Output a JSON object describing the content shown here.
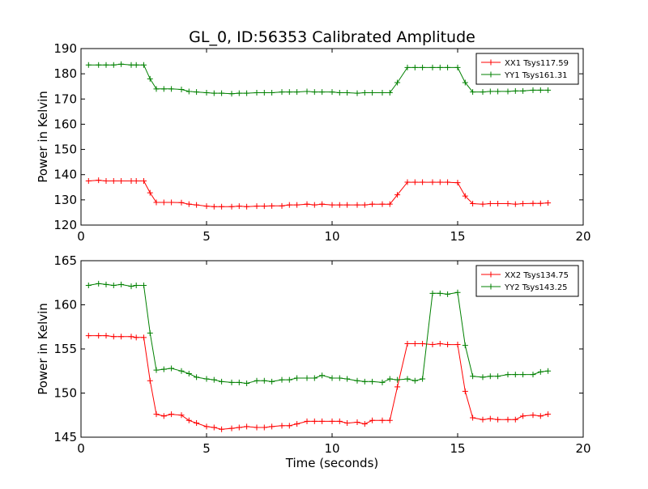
{
  "chart_data": [
    {
      "type": "line",
      "title": "GL_0, ID:56353 Calibrated Amplitude",
      "xlabel": "",
      "ylabel": "Power in Kelvin",
      "xlim": [
        0,
        20
      ],
      "ylim": [
        120,
        190
      ],
      "xticks": [
        0,
        5,
        10,
        15,
        20
      ],
      "yticks": [
        120,
        130,
        140,
        150,
        160,
        170,
        180,
        190
      ],
      "legend_position": "top-right",
      "x": [
        0.3,
        0.7,
        1.0,
        1.3,
        1.6,
        2.0,
        2.2,
        2.5,
        2.75,
        3.0,
        3.3,
        3.6,
        4.0,
        4.3,
        4.6,
        5.0,
        5.3,
        5.6,
        6.0,
        6.3,
        6.6,
        7.0,
        7.3,
        7.6,
        8.0,
        8.3,
        8.6,
        9.0,
        9.3,
        9.6,
        10.0,
        10.3,
        10.6,
        11.0,
        11.3,
        11.6,
        12.0,
        12.3,
        12.6,
        13.0,
        13.3,
        13.6,
        14.0,
        14.3,
        14.6,
        15.0,
        15.3,
        15.6,
        16.0,
        16.3,
        16.6,
        17.0,
        17.3,
        17.6,
        18.0,
        18.3,
        18.6
      ],
      "series": [
        {
          "name": "XX1 Tsys117.59",
          "color": "#ff0000",
          "values": [
            137.5,
            137.8,
            137.5,
            137.5,
            137.5,
            137.5,
            137.5,
            137.5,
            132.8,
            129.0,
            129.0,
            129.0,
            128.9,
            128.3,
            128.0,
            127.5,
            127.3,
            127.3,
            127.3,
            127.5,
            127.3,
            127.5,
            127.5,
            127.6,
            127.6,
            128.0,
            128.0,
            128.3,
            128.0,
            128.3,
            128.0,
            128.0,
            128.0,
            128.0,
            128.0,
            128.3,
            128.3,
            128.3,
            132.0,
            137.0,
            137.0,
            137.0,
            137.0,
            137.0,
            137.0,
            136.8,
            131.5,
            128.5,
            128.3,
            128.5,
            128.5,
            128.5,
            128.3,
            128.5,
            128.6,
            128.6,
            128.8
          ]
        },
        {
          "name": "YY1 Tsys161.31",
          "color": "#008000",
          "values": [
            183.5,
            183.5,
            183.5,
            183.5,
            183.8,
            183.5,
            183.5,
            183.5,
            178.0,
            174.0,
            174.0,
            174.0,
            173.8,
            173.0,
            172.8,
            172.5,
            172.3,
            172.3,
            172.1,
            172.3,
            172.3,
            172.5,
            172.5,
            172.5,
            172.8,
            172.8,
            172.8,
            173.0,
            172.8,
            172.8,
            172.8,
            172.5,
            172.5,
            172.3,
            172.5,
            172.5,
            172.5,
            172.5,
            176.5,
            182.5,
            182.5,
            182.5,
            182.5,
            182.5,
            182.5,
            182.5,
            176.5,
            172.8,
            172.8,
            173.0,
            173.0,
            173.0,
            173.2,
            173.2,
            173.5,
            173.5,
            173.5
          ]
        }
      ]
    },
    {
      "type": "line",
      "title": "",
      "xlabel": "Time (seconds)",
      "ylabel": "Power in Kelvin",
      "xlim": [
        0,
        20
      ],
      "ylim": [
        145,
        165
      ],
      "xticks": [
        0,
        5,
        10,
        15,
        20
      ],
      "yticks": [
        145,
        150,
        155,
        160,
        165
      ],
      "legend_position": "top-right",
      "x": [
        0.3,
        0.7,
        1.0,
        1.3,
        1.6,
        2.0,
        2.2,
        2.5,
        2.75,
        3.0,
        3.3,
        3.6,
        4.0,
        4.3,
        4.6,
        5.0,
        5.3,
        5.6,
        6.0,
        6.3,
        6.6,
        7.0,
        7.3,
        7.6,
        8.0,
        8.3,
        8.6,
        9.0,
        9.3,
        9.6,
        10.0,
        10.3,
        10.6,
        11.0,
        11.3,
        11.6,
        12.0,
        12.3,
        12.6,
        13.0,
        13.3,
        13.6,
        14.0,
        14.3,
        14.6,
        15.0,
        15.3,
        15.6,
        16.0,
        16.3,
        16.6,
        17.0,
        17.3,
        17.6,
        18.0,
        18.3,
        18.6
      ],
      "series": [
        {
          "name": "XX2 Tsys134.75",
          "color": "#ff0000",
          "values": [
            156.5,
            156.5,
            156.5,
            156.4,
            156.4,
            156.4,
            156.3,
            156.3,
            151.4,
            147.6,
            147.4,
            147.6,
            147.5,
            146.9,
            146.6,
            146.2,
            146.1,
            145.9,
            146.0,
            146.1,
            146.2,
            146.1,
            146.1,
            146.2,
            146.3,
            146.3,
            146.5,
            146.8,
            146.8,
            146.8,
            146.8,
            146.8,
            146.6,
            146.7,
            146.5,
            146.9,
            146.9,
            146.9,
            150.7,
            155.6,
            155.6,
            155.6,
            155.5,
            155.6,
            155.5,
            155.5,
            150.2,
            147.2,
            147.0,
            147.1,
            147.0,
            147.0,
            147.0,
            147.4,
            147.5,
            147.4,
            147.6
          ]
        },
        {
          "name": "YY2 Tsys143.25",
          "color": "#008000",
          "values": [
            162.2,
            162.4,
            162.3,
            162.2,
            162.3,
            162.1,
            162.2,
            162.2,
            156.8,
            152.6,
            152.7,
            152.8,
            152.5,
            152.2,
            151.8,
            151.6,
            151.5,
            151.3,
            151.2,
            151.2,
            151.1,
            151.4,
            151.4,
            151.3,
            151.5,
            151.5,
            151.7,
            151.7,
            151.7,
            152.0,
            151.7,
            151.7,
            151.6,
            151.4,
            151.3,
            151.3,
            151.2,
            151.6,
            151.5,
            151.6,
            151.4,
            151.6,
            161.3,
            161.3,
            161.2,
            161.4,
            155.4,
            151.9,
            151.8,
            151.9,
            151.9,
            152.1,
            152.1,
            152.1,
            152.1,
            152.4,
            152.5
          ]
        }
      ]
    }
  ]
}
